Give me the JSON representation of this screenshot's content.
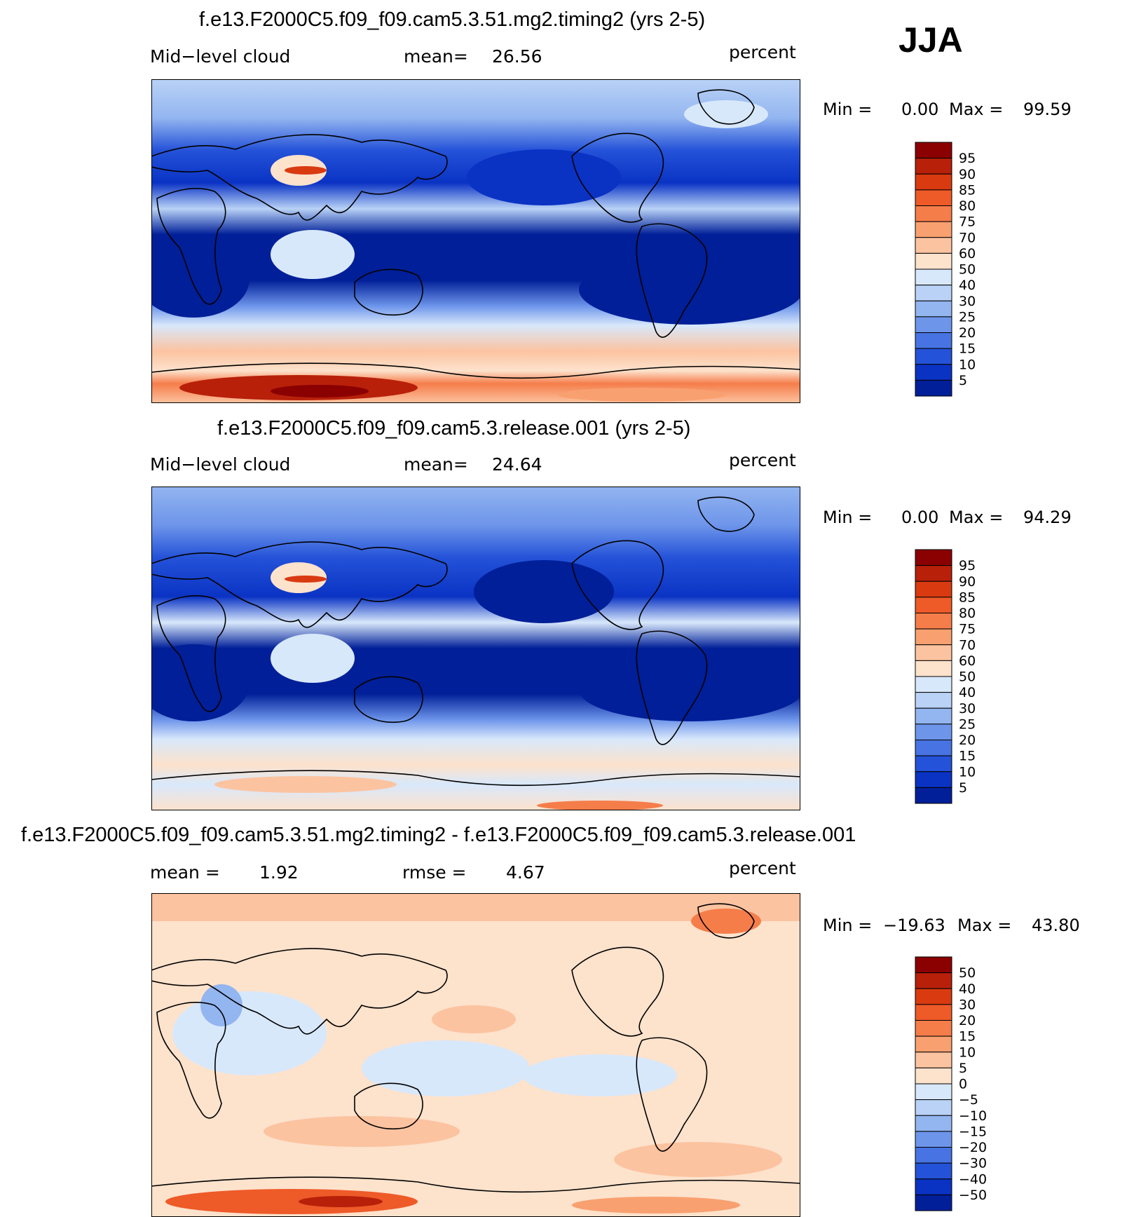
{
  "season": "JJA",
  "colors": {
    "ocean_low": "#0a2aa0",
    "land_outline": "#000000",
    "high": "#8a0000"
  },
  "panels": [
    {
      "title": "f.e13.F2000C5.f09_f09.cam5.3.51.mg2.timing2 (yrs 2-5)",
      "left_label": "Mid−level cloud",
      "center_label": "mean=",
      "center_value": "26.56",
      "units": "percent",
      "min_label": "Min =",
      "min_value": "0.00",
      "max_label": "Max =",
      "max_value": "99.59",
      "levels": [
        "95",
        "90",
        "85",
        "80",
        "75",
        "70",
        "60",
        "50",
        "40",
        "30",
        "25",
        "20",
        "15",
        "10",
        "5"
      ],
      "colors": [
        "#8b0000",
        "#b8200a",
        "#d93a10",
        "#ee5a28",
        "#f57d4a",
        "#f9a070",
        "#fcc3a0",
        "#fde2cc",
        "#d8e8fb",
        "#b9d2f6",
        "#93b5f0",
        "#6d95ea",
        "#4774e2",
        "#2452d8",
        "#0a33c4",
        "#001f98"
      ]
    },
    {
      "title": "f.e13.F2000C5.f09_f09.cam5.3.release.001 (yrs 2-5)",
      "left_label": "Mid−level cloud",
      "center_label": "mean=",
      "center_value": "24.64",
      "units": "percent",
      "min_label": "Min =",
      "min_value": "0.00",
      "max_label": "Max =",
      "max_value": "94.29",
      "levels": [
        "95",
        "90",
        "85",
        "80",
        "75",
        "70",
        "60",
        "50",
        "40",
        "30",
        "25",
        "20",
        "15",
        "10",
        "5"
      ],
      "colors": [
        "#8b0000",
        "#b8200a",
        "#d93a10",
        "#ee5a28",
        "#f57d4a",
        "#f9a070",
        "#fcc3a0",
        "#fde2cc",
        "#d8e8fb",
        "#b9d2f6",
        "#93b5f0",
        "#6d95ea",
        "#4774e2",
        "#2452d8",
        "#0a33c4",
        "#001f98"
      ]
    },
    {
      "title": "f.e13.F2000C5.f09_f09.cam5.3.51.mg2.timing2 - f.e13.F2000C5.f09_f09.cam5.3.release.001",
      "left_label": "mean =",
      "left_value": "1.92",
      "center_label": "rmse =",
      "center_value": "4.67",
      "units": "percent",
      "min_label": "Min =",
      "min_value": "−19.63",
      "max_label": "Max =",
      "max_value": "43.80",
      "levels": [
        "50",
        "40",
        "30",
        "20",
        "15",
        "10",
        "5",
        "0",
        "−5",
        "−10",
        "−15",
        "−20",
        "−30",
        "−40",
        "−50"
      ],
      "colors": [
        "#8b0000",
        "#b8200a",
        "#d93a10",
        "#ee5a28",
        "#f57d4a",
        "#f9a070",
        "#fcc3a0",
        "#fde2cc",
        "#d8e8fb",
        "#b9d2f6",
        "#93b5f0",
        "#6d95ea",
        "#4774e2",
        "#2452d8",
        "#0a33c4",
        "#001f98"
      ]
    }
  ]
}
